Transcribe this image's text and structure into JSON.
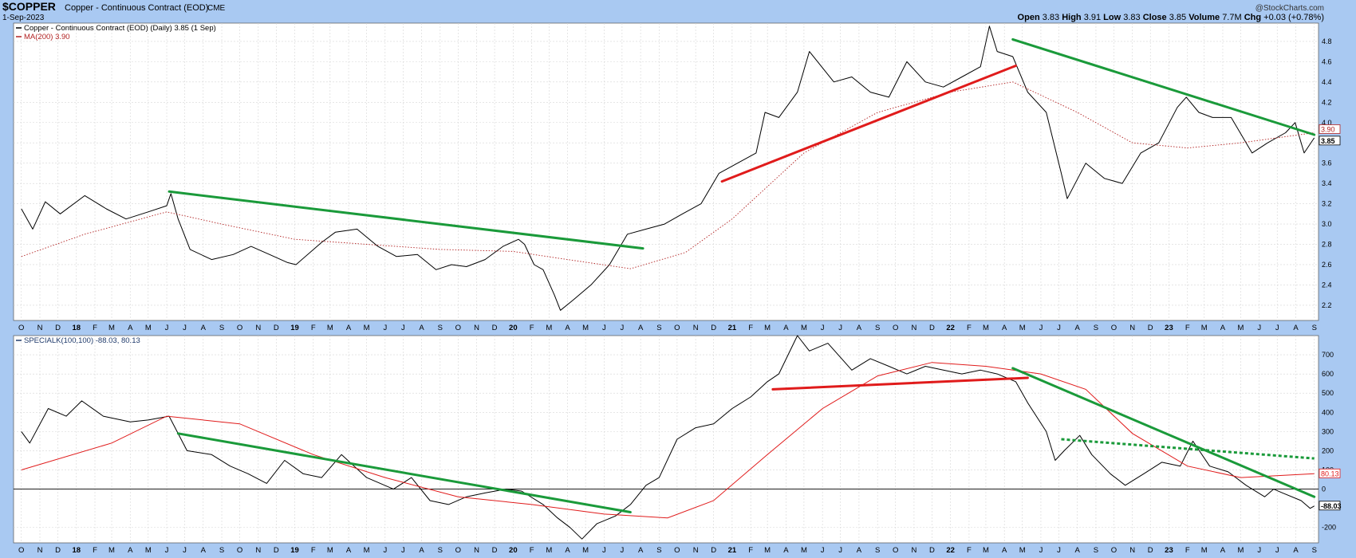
{
  "header": {
    "symbol": "$COPPER",
    "name": "Copper - Continuous Contract (EOD)",
    "exchange": "CME",
    "date": "1-Sep-2023",
    "watermark": "@StockCharts.com",
    "quote": [
      {
        "label": "Open",
        "value": "3.83"
      },
      {
        "label": "High",
        "value": "3.91"
      },
      {
        "label": "Low",
        "value": "3.83"
      },
      {
        "label": "Close",
        "value": "3.85"
      },
      {
        "label": "Volume",
        "value": "7.7M"
      },
      {
        "label": "Chg",
        "value": "+0.03 (+0.78%)"
      }
    ]
  },
  "colors": {
    "background": "#a9c9f2",
    "plot": "#ffffff",
    "price": "#000000",
    "ma": "#b22222",
    "specialk": "#1f3a6b",
    "signal": "#e01b1b",
    "green": "#1a9a3a",
    "red": "#e01b1b"
  },
  "chart_data": [
    {
      "type": "line",
      "legend": [
        {
          "text": "Copper - Continuous Contract (EOD) (Daily) 3.85 (1 Sep)",
          "color": "#000000"
        },
        {
          "text": "MA(200) 3.90",
          "color": "#b22222"
        }
      ],
      "yticks": [
        "2.2",
        "2.4",
        "2.6",
        "2.8",
        "3.0",
        "3.2",
        "3.4",
        "3.6",
        "3.8",
        "4.0",
        "4.2",
        "4.4",
        "4.6",
        "4.8"
      ],
      "ylim": [
        2.05,
        4.98
      ],
      "last_value_labels": [
        "3.90",
        "3.85"
      ],
      "series": [
        {
          "name": "Copper - Continuous Contract (EOD) (Daily)",
          "style": "solid",
          "x": [
            "2017-10-01",
            "2017-10-20",
            "2017-11-10",
            "2017-12-05",
            "2018-01-15",
            "2018-02-20",
            "2018-03-25",
            "2018-05-01",
            "2018-06-01",
            "2018-06-08",
            "2018-06-20",
            "2018-07-10",
            "2018-08-15",
            "2018-09-20",
            "2018-10-20",
            "2018-11-20",
            "2018-12-20",
            "2019-01-03",
            "2019-02-15",
            "2019-03-10",
            "2019-04-15",
            "2019-05-20",
            "2019-06-20",
            "2019-07-25",
            "2019-08-25",
            "2019-09-20",
            "2019-10-15",
            "2019-11-15",
            "2019-12-15",
            "2020-01-10",
            "2020-01-20",
            "2020-02-05",
            "2020-02-20",
            "2020-03-10",
            "2020-03-20",
            "2020-04-10",
            "2020-05-10",
            "2020-06-10",
            "2020-07-10",
            "2020-08-10",
            "2020-09-10",
            "2020-10-10",
            "2020-11-10",
            "2020-12-10",
            "2021-01-10",
            "2021-02-10",
            "2021-02-25",
            "2021-03-20",
            "2021-04-20",
            "2021-05-10",
            "2021-06-20",
            "2021-07-20",
            "2021-08-20",
            "2021-09-20",
            "2021-10-20",
            "2021-11-20",
            "2021-12-20",
            "2022-01-20",
            "2022-02-20",
            "2022-03-07",
            "2022-03-20",
            "2022-04-15",
            "2022-05-10",
            "2022-06-10",
            "2022-07-05",
            "2022-07-15",
            "2022-08-15",
            "2022-09-15",
            "2022-10-15",
            "2022-11-15",
            "2022-12-15",
            "2023-01-15",
            "2023-01-30",
            "2023-02-20",
            "2023-03-15",
            "2023-04-15",
            "2023-05-20",
            "2023-06-15",
            "2023-07-15",
            "2023-07-31",
            "2023-08-15",
            "2023-09-01"
          ],
          "values": [
            3.15,
            2.95,
            3.22,
            3.1,
            3.28,
            3.15,
            3.05,
            3.12,
            3.18,
            3.3,
            3.05,
            2.75,
            2.65,
            2.7,
            2.78,
            2.7,
            2.62,
            2.6,
            2.82,
            2.92,
            2.95,
            2.78,
            2.68,
            2.7,
            2.55,
            2.6,
            2.58,
            2.65,
            2.78,
            2.85,
            2.8,
            2.6,
            2.55,
            2.3,
            2.15,
            2.25,
            2.4,
            2.6,
            2.9,
            2.95,
            3.0,
            3.1,
            3.2,
            3.5,
            3.6,
            3.7,
            4.1,
            4.05,
            4.3,
            4.7,
            4.4,
            4.45,
            4.3,
            4.25,
            4.6,
            4.4,
            4.35,
            4.45,
            4.55,
            4.95,
            4.7,
            4.65,
            4.3,
            4.1,
            3.5,
            3.25,
            3.6,
            3.45,
            3.4,
            3.7,
            3.8,
            4.15,
            4.25,
            4.1,
            4.05,
            4.05,
            3.7,
            3.8,
            3.9,
            4.0,
            3.7,
            3.85
          ]
        },
        {
          "name": "MA(200)",
          "style": "dotted",
          "x": [
            "2017-10-01",
            "2018-01-15",
            "2018-06-01",
            "2018-09-01",
            "2019-01-01",
            "2019-05-01",
            "2019-09-01",
            "2020-01-01",
            "2020-04-01",
            "2020-07-15",
            "2020-10-15",
            "2021-01-01",
            "2021-05-01",
            "2021-09-01",
            "2022-01-01",
            "2022-04-15",
            "2022-08-01",
            "2022-11-01",
            "2023-02-01",
            "2023-05-01",
            "2023-09-01"
          ],
          "values": [
            2.68,
            2.9,
            3.12,
            3.0,
            2.85,
            2.8,
            2.75,
            2.73,
            2.65,
            2.56,
            2.72,
            3.05,
            3.7,
            4.1,
            4.3,
            4.4,
            4.1,
            3.8,
            3.75,
            3.8,
            3.9
          ]
        },
        {
          "name": "green trendline",
          "style": "trend-green",
          "x": [
            "2018-06-05",
            "2020-08-05"
          ],
          "values": [
            3.32,
            2.76
          ]
        },
        {
          "name": "red trendline",
          "style": "trend-red",
          "x": [
            "2020-12-15",
            "2022-04-20"
          ],
          "values": [
            3.42,
            4.56
          ]
        },
        {
          "name": "green trendline",
          "style": "trend-green",
          "x": [
            "2022-04-15",
            "2023-09-01"
          ],
          "values": [
            4.82,
            3.88
          ]
        }
      ]
    },
    {
      "type": "line",
      "legend": [
        {
          "text": "SPECIALK(100,100) -88.03, 80.13",
          "color": "#1f3a6b"
        }
      ],
      "yticks": [
        "-200",
        "0",
        "100",
        "200",
        "300",
        "400",
        "500",
        "600",
        "700"
      ],
      "ylim": [
        -280,
        800
      ],
      "zero_line": 0,
      "last_value_labels": [
        "80.13",
        "-88.03"
      ],
      "series": [
        {
          "name": "SPECIALK",
          "style": "solid",
          "x": [
            "2017-10-01",
            "2017-10-15",
            "2017-11-15",
            "2017-12-15",
            "2018-01-10",
            "2018-02-15",
            "2018-04-01",
            "2018-05-01",
            "2018-06-05",
            "2018-07-05",
            "2018-08-15",
            "2018-09-15",
            "2018-10-15",
            "2018-11-15",
            "2018-12-15",
            "2019-01-15",
            "2019-02-15",
            "2019-03-20",
            "2019-05-01",
            "2019-06-15",
            "2019-07-15",
            "2019-08-15",
            "2019-09-15",
            "2019-10-15",
            "2019-11-15",
            "2019-12-20",
            "2020-01-15",
            "2020-02-20",
            "2020-03-15",
            "2020-04-05",
            "2020-04-25",
            "2020-05-20",
            "2020-06-20",
            "2020-07-15",
            "2020-08-10",
            "2020-09-01",
            "2020-10-01",
            "2020-11-01",
            "2020-12-01",
            "2021-01-01",
            "2021-02-01",
            "2021-03-01",
            "2021-03-20",
            "2021-04-20",
            "2021-05-10",
            "2021-06-10",
            "2021-07-20",
            "2021-08-20",
            "2021-09-20",
            "2021-10-20",
            "2021-11-20",
            "2021-12-20",
            "2022-01-20",
            "2022-02-20",
            "2022-03-20",
            "2022-04-20",
            "2022-05-10",
            "2022-06-10",
            "2022-06-25",
            "2022-07-10",
            "2022-08-05",
            "2022-08-25",
            "2022-09-25",
            "2022-10-20",
            "2022-11-20",
            "2022-12-20",
            "2023-01-20",
            "2023-02-10",
            "2023-03-10",
            "2023-04-10",
            "2023-05-10",
            "2023-06-10",
            "2023-06-25",
            "2023-07-10",
            "2023-08-10",
            "2023-08-25",
            "2023-09-01"
          ],
          "values": [
            300,
            240,
            420,
            380,
            460,
            380,
            350,
            360,
            380,
            200,
            180,
            120,
            80,
            30,
            150,
            80,
            60,
            180,
            60,
            0,
            60,
            -60,
            -80,
            -40,
            -20,
            0,
            -10,
            -80,
            -150,
            -200,
            -260,
            -180,
            -140,
            -80,
            20,
            60,
            260,
            320,
            340,
            420,
            480,
            560,
            600,
            800,
            720,
            760,
            620,
            680,
            640,
            600,
            640,
            620,
            600,
            620,
            600,
            560,
            450,
            300,
            150,
            200,
            280,
            180,
            80,
            20,
            80,
            140,
            120,
            250,
            120,
            90,
            20,
            -40,
            0,
            -20,
            -60,
            -100,
            -88
          ]
        },
        {
          "name": "Signal",
          "style": "thin",
          "x": [
            "2017-10-01",
            "2018-03-01",
            "2018-06-01",
            "2018-10-01",
            "2019-02-01",
            "2019-06-01",
            "2019-10-01",
            "2020-02-01",
            "2020-06-01",
            "2020-09-15",
            "2020-12-01",
            "2021-03-01",
            "2021-06-01",
            "2021-09-01",
            "2021-12-01",
            "2022-03-01",
            "2022-06-01",
            "2022-08-15",
            "2022-11-01",
            "2023-02-01",
            "2023-05-01",
            "2023-09-01"
          ],
          "values": [
            100,
            240,
            380,
            340,
            180,
            60,
            -40,
            -80,
            -130,
            -150,
            -60,
            180,
            420,
            590,
            660,
            640,
            600,
            520,
            290,
            120,
            60,
            80
          ]
        },
        {
          "name": "green trendline",
          "style": "trend-green",
          "x": [
            "2018-06-20",
            "2020-07-15"
          ],
          "values": [
            290,
            -120
          ]
        },
        {
          "name": "red trendline",
          "style": "trend-red",
          "x": [
            "2021-03-10",
            "2022-05-10"
          ],
          "values": [
            520,
            580
          ]
        },
        {
          "name": "green trendline",
          "style": "trend-green",
          "x": [
            "2022-04-15",
            "2023-09-01"
          ],
          "values": [
            630,
            -40
          ]
        },
        {
          "name": "green dotted trendline",
          "style": "trend-green-dotted",
          "x": [
            "2022-07-05",
            "2023-09-01"
          ],
          "values": [
            260,
            160
          ]
        }
      ]
    }
  ],
  "xaxis": {
    "ticks": [
      {
        "date": "2017-10-01",
        "label": "O"
      },
      {
        "date": "2017-11-01",
        "label": "N"
      },
      {
        "date": "2017-12-01",
        "label": "D"
      },
      {
        "date": "2018-01-01",
        "label": "18"
      },
      {
        "date": "2018-02-01",
        "label": "F"
      },
      {
        "date": "2018-03-01",
        "label": "M"
      },
      {
        "date": "2018-04-01",
        "label": "A"
      },
      {
        "date": "2018-05-01",
        "label": "M"
      },
      {
        "date": "2018-06-01",
        "label": "J"
      },
      {
        "date": "2018-07-01",
        "label": "J"
      },
      {
        "date": "2018-08-01",
        "label": "A"
      },
      {
        "date": "2018-09-01",
        "label": "S"
      },
      {
        "date": "2018-10-01",
        "label": "O"
      },
      {
        "date": "2018-11-01",
        "label": "N"
      },
      {
        "date": "2018-12-01",
        "label": "D"
      },
      {
        "date": "2019-01-01",
        "label": "19"
      },
      {
        "date": "2019-02-01",
        "label": "F"
      },
      {
        "date": "2019-03-01",
        "label": "M"
      },
      {
        "date": "2019-04-01",
        "label": "A"
      },
      {
        "date": "2019-05-01",
        "label": "M"
      },
      {
        "date": "2019-06-01",
        "label": "J"
      },
      {
        "date": "2019-07-01",
        "label": "J"
      },
      {
        "date": "2019-08-01",
        "label": "A"
      },
      {
        "date": "2019-09-01",
        "label": "S"
      },
      {
        "date": "2019-10-01",
        "label": "O"
      },
      {
        "date": "2019-11-01",
        "label": "N"
      },
      {
        "date": "2019-12-01",
        "label": "D"
      },
      {
        "date": "2020-01-01",
        "label": "20"
      },
      {
        "date": "2020-02-01",
        "label": "F"
      },
      {
        "date": "2020-03-01",
        "label": "M"
      },
      {
        "date": "2020-04-01",
        "label": "A"
      },
      {
        "date": "2020-05-01",
        "label": "M"
      },
      {
        "date": "2020-06-01",
        "label": "J"
      },
      {
        "date": "2020-07-01",
        "label": "J"
      },
      {
        "date": "2020-08-01",
        "label": "A"
      },
      {
        "date": "2020-09-01",
        "label": "S"
      },
      {
        "date": "2020-10-01",
        "label": "O"
      },
      {
        "date": "2020-11-01",
        "label": "N"
      },
      {
        "date": "2020-12-01",
        "label": "D"
      },
      {
        "date": "2021-01-01",
        "label": "21"
      },
      {
        "date": "2021-02-01",
        "label": "F"
      },
      {
        "date": "2021-03-01",
        "label": "M"
      },
      {
        "date": "2021-04-01",
        "label": "A"
      },
      {
        "date": "2021-05-01",
        "label": "M"
      },
      {
        "date": "2021-06-01",
        "label": "J"
      },
      {
        "date": "2021-07-01",
        "label": "J"
      },
      {
        "date": "2021-08-01",
        "label": "A"
      },
      {
        "date": "2021-09-01",
        "label": "S"
      },
      {
        "date": "2021-10-01",
        "label": "O"
      },
      {
        "date": "2021-11-01",
        "label": "N"
      },
      {
        "date": "2021-12-01",
        "label": "D"
      },
      {
        "date": "2022-01-01",
        "label": "22"
      },
      {
        "date": "2022-02-01",
        "label": "F"
      },
      {
        "date": "2022-03-01",
        "label": "M"
      },
      {
        "date": "2022-04-01",
        "label": "A"
      },
      {
        "date": "2022-05-01",
        "label": "M"
      },
      {
        "date": "2022-06-01",
        "label": "J"
      },
      {
        "date": "2022-07-01",
        "label": "J"
      },
      {
        "date": "2022-08-01",
        "label": "A"
      },
      {
        "date": "2022-09-01",
        "label": "S"
      },
      {
        "date": "2022-10-01",
        "label": "O"
      },
      {
        "date": "2022-11-01",
        "label": "N"
      },
      {
        "date": "2022-12-01",
        "label": "D"
      },
      {
        "date": "2023-01-01",
        "label": "23"
      },
      {
        "date": "2023-02-01",
        "label": "F"
      },
      {
        "date": "2023-03-01",
        "label": "M"
      },
      {
        "date": "2023-04-01",
        "label": "A"
      },
      {
        "date": "2023-05-01",
        "label": "M"
      },
      {
        "date": "2023-06-01",
        "label": "J"
      },
      {
        "date": "2023-07-01",
        "label": "J"
      },
      {
        "date": "2023-08-01",
        "label": "A"
      },
      {
        "date": "2023-09-01",
        "label": "S"
      }
    ]
  }
}
